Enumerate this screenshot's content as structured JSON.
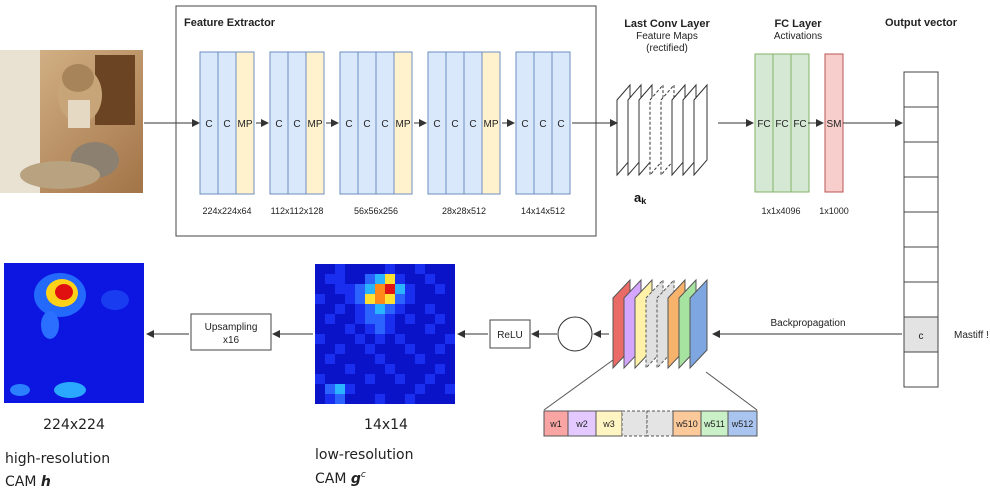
{
  "extractor": {
    "title": "Feature Extractor",
    "blocks": [
      {
        "layers": [
          "C",
          "C",
          "MP"
        ],
        "size": "224x224x64"
      },
      {
        "layers": [
          "C",
          "C",
          "MP"
        ],
        "size": "112x112x128"
      },
      {
        "layers": [
          "C",
          "C",
          "C",
          "MP"
        ],
        "size": "56x56x256"
      },
      {
        "layers": [
          "C",
          "C",
          "C",
          "MP"
        ],
        "size": "28x28x512"
      },
      {
        "layers": [
          "C",
          "C",
          "C"
        ],
        "size": "14x14x512"
      }
    ]
  },
  "last_conv": {
    "title": "Last Conv Layer",
    "subtitle1": "Feature Maps",
    "subtitle2": "(rectified)",
    "symbol": "a",
    "symbol_sub": "k"
  },
  "fc": {
    "title": "FC Layer",
    "subtitle": "Activations",
    "layers": [
      "FC",
      "FC",
      "FC"
    ],
    "softmax": "SM",
    "fc_size": "1x1x4096",
    "sm_size": "1x1000"
  },
  "output": {
    "title": "Output vector",
    "cell_label": "c",
    "class_label": "Mastiff !"
  },
  "backprop": {
    "label": "Backpropagation"
  },
  "weights": [
    "w1",
    "w2",
    "w3",
    "",
    "",
    "w510",
    "w511",
    "w512"
  ],
  "relu": {
    "label": "ReLU"
  },
  "upsample": {
    "line1": "Upsampling",
    "line2": "x16"
  },
  "low_res": {
    "size": "14x14",
    "line1": "low-resolution",
    "line2": "CAM ",
    "symbol": "g",
    "sup": "c"
  },
  "high_res": {
    "size": "224x224",
    "line1": "high-resolution",
    "line2": "CAM ",
    "symbol": "h"
  },
  "colors": {
    "conv": "#dae8fc",
    "pool": "#fff2cc",
    "fc": "#d5e8d4",
    "softmax": "#f8cecc",
    "stroke": "#6c8ebf",
    "arrow": "#333333"
  }
}
